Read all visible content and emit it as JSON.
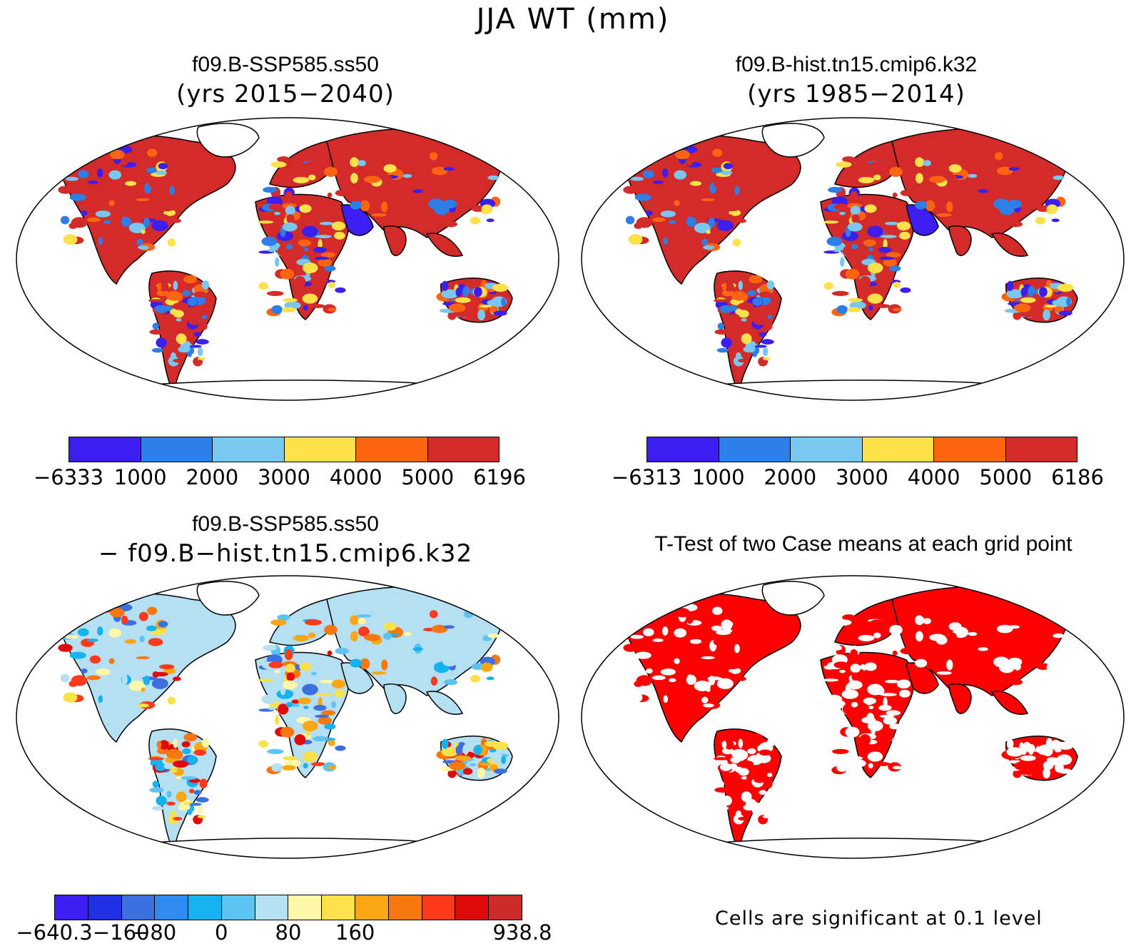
{
  "title": "JJA WT (mm)",
  "panels": [
    {
      "title": "f09.B-SSP585.ss50",
      "subtitle": "(yrs 2015−2040)"
    },
    {
      "title": "f09.B-hist.tn15.cmip6.k32",
      "subtitle": "(yrs 1985−2014)"
    },
    {
      "title": "f09.B-SSP585.ss50",
      "subtitle": "− f09.B−hist.tn15.cmip6.k32"
    },
    {
      "title": "T-Test of two Case means at each grid point",
      "subtitle": ""
    }
  ],
  "colorbars": [
    {
      "colors": [
        "#3c1ff0",
        "#2f7ee8",
        "#79c6ef",
        "#fde14a",
        "#ff6410",
        "#d32a2a"
      ],
      "labels": [
        "−6333",
        "1000",
        "2000",
        "3000",
        "4000",
        "5000",
        "6196"
      ]
    },
    {
      "colors": [
        "#3c1ff0",
        "#2f7ee8",
        "#79c6ef",
        "#fde14a",
        "#ff6410",
        "#d32a2a"
      ],
      "labels": [
        "−6313",
        "1000",
        "2000",
        "3000",
        "4000",
        "5000",
        "6186"
      ]
    },
    {
      "colors": [
        "#3c1ff0",
        "#1f2fe6",
        "#3c6fe0",
        "#2f8bf0",
        "#14b3f0",
        "#5cc3f2",
        "#b5dff2",
        "#fff8a8",
        "#fde14a",
        "#fba615",
        "#f8770f",
        "#ff3a1a",
        "#e00a0a",
        "#cf2a2a"
      ],
      "labels": [
        "−640.3",
        "",
        "−160",
        "−80",
        "",
        "0",
        "",
        "80",
        "",
        "160",
        "",
        "",
        "",
        "",
        "938.8"
      ]
    }
  ],
  "footnote": "Cells are significant at 0.1 level",
  "colors": {
    "significant": "#ff0000",
    "outline": "#000000"
  }
}
